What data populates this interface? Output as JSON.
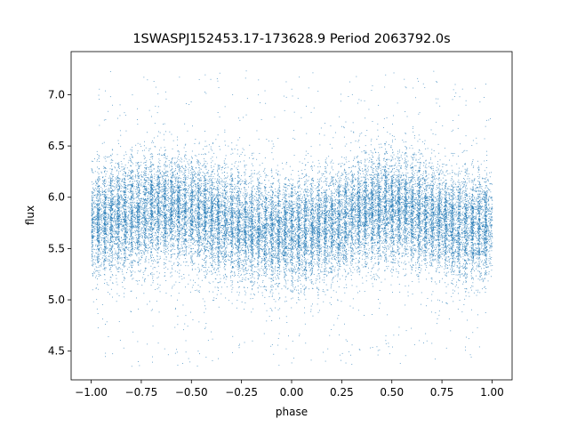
{
  "chart_data": {
    "type": "scatter",
    "title": "1SWASPJ152453.17-173628.9 Period 2063792.0s",
    "xlabel": "phase",
    "ylabel": "flux",
    "xlim": [
      -1.1,
      1.1
    ],
    "ylim": [
      4.22,
      7.42
    ],
    "xticks": [
      -1.0,
      -0.75,
      -0.5,
      -0.25,
      0.0,
      0.25,
      0.5,
      0.75,
      1.0
    ],
    "xtick_labels": [
      "−1.00",
      "−0.75",
      "−0.50",
      "−0.25",
      "0.00",
      "0.25",
      "0.50",
      "0.75",
      "1.00"
    ],
    "yticks": [
      4.5,
      5.0,
      5.5,
      6.0,
      6.5,
      7.0
    ],
    "ytick_labels": [
      "4.5",
      "5.0",
      "5.5",
      "6.0",
      "6.5",
      "7.0"
    ],
    "grid": false,
    "legend": "none",
    "point_color": "#1f77b4",
    "profile": {
      "phase": [
        -1.0,
        -0.9,
        -0.8,
        -0.7,
        -0.6,
        -0.5,
        -0.4,
        -0.3,
        -0.2,
        -0.1,
        0.0,
        0.1,
        0.2,
        0.3,
        0.4,
        0.5,
        0.6,
        0.7,
        0.8,
        0.9,
        1.0
      ],
      "mean_flux": [
        5.72,
        5.8,
        5.82,
        5.88,
        5.9,
        5.86,
        5.8,
        5.74,
        5.7,
        5.66,
        5.65,
        5.7,
        5.74,
        5.8,
        5.88,
        5.9,
        5.86,
        5.8,
        5.74,
        5.7,
        5.72
      ],
      "scatter_sigma": 0.26,
      "flux_range": [
        4.35,
        7.25
      ]
    },
    "n_points": 26000
  }
}
